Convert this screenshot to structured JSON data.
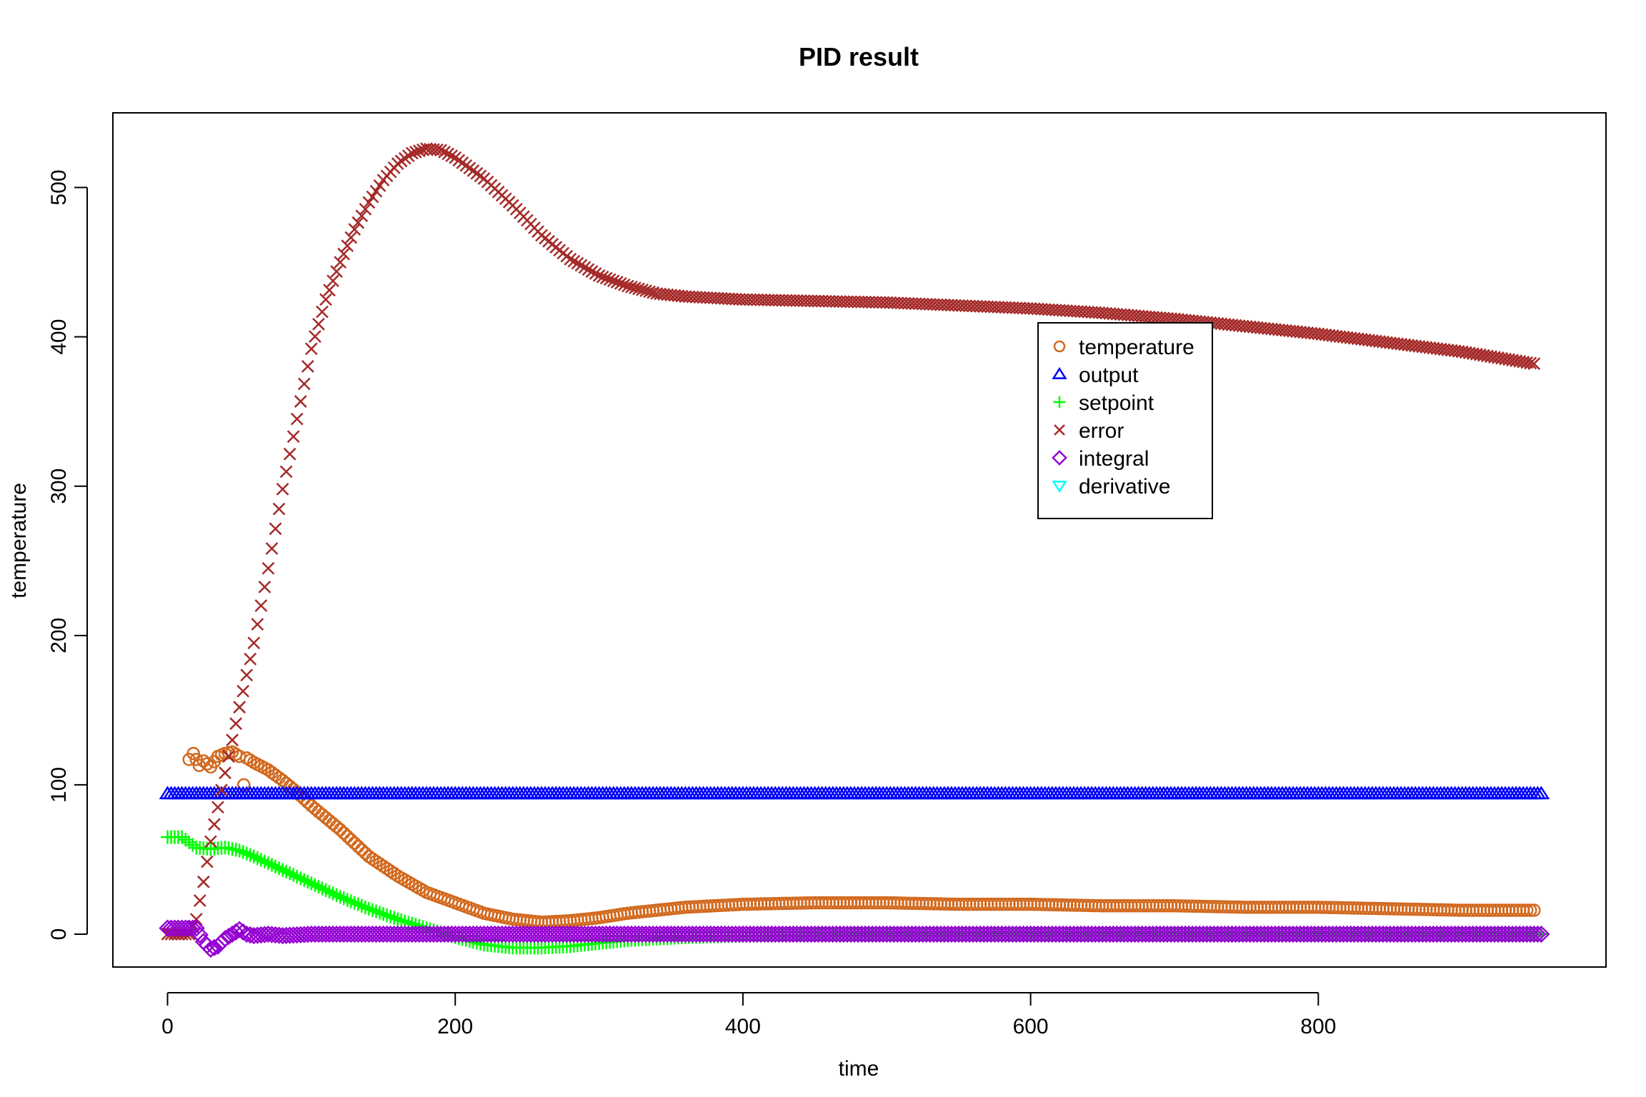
{
  "chart_data": {
    "type": "scatter",
    "title": "PID result",
    "xlabel": "time",
    "ylabel": "temperature",
    "xlim": [
      -38,
      1000
    ],
    "ylim": [
      -22,
      550
    ],
    "x_ticks": [
      0,
      200,
      400,
      600,
      800
    ],
    "y_ticks": [
      0,
      100,
      200,
      300,
      400,
      500
    ],
    "grid": false,
    "legend_position": "upper-center-right",
    "series": [
      {
        "name": "temperature",
        "marker": "circle",
        "color": "#D2691E",
        "points": [
          [
            15,
            117
          ],
          [
            18,
            121
          ],
          [
            22,
            113
          ],
          [
            25,
            116
          ],
          [
            30,
            112
          ],
          [
            35,
            119
          ],
          [
            40,
            121
          ],
          [
            45,
            122
          ],
          [
            50,
            119
          ],
          [
            53,
            100
          ],
          [
            55,
            118
          ],
          [
            60,
            115
          ],
          [
            70,
            110
          ],
          [
            80,
            103
          ],
          [
            90,
            95
          ],
          [
            100,
            86
          ],
          [
            120,
            70
          ],
          [
            140,
            52
          ],
          [
            160,
            39
          ],
          [
            180,
            28
          ],
          [
            200,
            21
          ],
          [
            220,
            14
          ],
          [
            240,
            10
          ],
          [
            260,
            8
          ],
          [
            280,
            9
          ],
          [
            300,
            11
          ],
          [
            320,
            14
          ],
          [
            340,
            16
          ],
          [
            360,
            18
          ],
          [
            380,
            19
          ],
          [
            400,
            20
          ],
          [
            450,
            21
          ],
          [
            500,
            21
          ],
          [
            550,
            20
          ],
          [
            600,
            20
          ],
          [
            650,
            19
          ],
          [
            700,
            19
          ],
          [
            750,
            18
          ],
          [
            800,
            18
          ],
          [
            850,
            17
          ],
          [
            900,
            16
          ],
          [
            950,
            16
          ]
        ]
      },
      {
        "name": "output",
        "marker": "triangle-up",
        "color": "#0000FF",
        "points": [
          [
            0,
            94
          ],
          [
            100,
            94
          ],
          [
            200,
            94
          ],
          [
            300,
            94
          ],
          [
            400,
            94
          ],
          [
            500,
            94
          ],
          [
            600,
            94
          ],
          [
            700,
            94
          ],
          [
            800,
            94
          ],
          [
            900,
            94
          ],
          [
            955,
            94
          ]
        ]
      },
      {
        "name": "setpoint",
        "marker": "plus",
        "color": "#00FF00",
        "points": [
          [
            0,
            65
          ],
          [
            10,
            65
          ],
          [
            20,
            58
          ],
          [
            30,
            57
          ],
          [
            40,
            58
          ],
          [
            50,
            56
          ],
          [
            60,
            52
          ],
          [
            80,
            43
          ],
          [
            100,
            34
          ],
          [
            120,
            25
          ],
          [
            140,
            17
          ],
          [
            160,
            10
          ],
          [
            180,
            4
          ],
          [
            200,
            -2
          ],
          [
            220,
            -7
          ],
          [
            240,
            -9
          ],
          [
            260,
            -9
          ],
          [
            280,
            -8
          ],
          [
            300,
            -6
          ],
          [
            320,
            -4
          ],
          [
            340,
            -3
          ],
          [
            360,
            -2
          ],
          [
            400,
            -1
          ],
          [
            500,
            0
          ],
          [
            600,
            0
          ],
          [
            700,
            0
          ],
          [
            800,
            0
          ],
          [
            900,
            0
          ],
          [
            955,
            0
          ]
        ]
      },
      {
        "name": "error",
        "marker": "x",
        "color": "#A52A2A",
        "points": [
          [
            0,
            0
          ],
          [
            15,
            0
          ],
          [
            20,
            10
          ],
          [
            25,
            35
          ],
          [
            30,
            62
          ],
          [
            35,
            85
          ],
          [
            40,
            108
          ],
          [
            50,
            152
          ],
          [
            60,
            195
          ],
          [
            70,
            245
          ],
          [
            80,
            298
          ],
          [
            90,
            345
          ],
          [
            100,
            392
          ],
          [
            110,
            425
          ],
          [
            120,
            450
          ],
          [
            130,
            472
          ],
          [
            140,
            490
          ],
          [
            150,
            505
          ],
          [
            160,
            516
          ],
          [
            170,
            523
          ],
          [
            180,
            526
          ],
          [
            190,
            525
          ],
          [
            200,
            520
          ],
          [
            220,
            506
          ],
          [
            240,
            488
          ],
          [
            260,
            468
          ],
          [
            280,
            452
          ],
          [
            300,
            441
          ],
          [
            320,
            434
          ],
          [
            340,
            429
          ],
          [
            360,
            427
          ],
          [
            400,
            425
          ],
          [
            450,
            424
          ],
          [
            500,
            423
          ],
          [
            550,
            421
          ],
          [
            600,
            419
          ],
          [
            650,
            416
          ],
          [
            700,
            412
          ],
          [
            750,
            407
          ],
          [
            800,
            402
          ],
          [
            850,
            396
          ],
          [
            900,
            390
          ],
          [
            950,
            382
          ]
        ]
      },
      {
        "name": "integral",
        "marker": "diamond",
        "color": "#9400D3",
        "points": [
          [
            0,
            4
          ],
          [
            10,
            4
          ],
          [
            20,
            4
          ],
          [
            25,
            -5
          ],
          [
            30,
            -10
          ],
          [
            35,
            -8
          ],
          [
            40,
            -3
          ],
          [
            45,
            0
          ],
          [
            50,
            3
          ],
          [
            55,
            0
          ],
          [
            60,
            -1
          ],
          [
            70,
            0
          ],
          [
            80,
            -1
          ],
          [
            100,
            0
          ],
          [
            150,
            0
          ],
          [
            200,
            0
          ],
          [
            250,
            0
          ],
          [
            300,
            0
          ],
          [
            350,
            0
          ],
          [
            400,
            0
          ],
          [
            450,
            0
          ],
          [
            500,
            0
          ],
          [
            550,
            0
          ],
          [
            600,
            0
          ],
          [
            650,
            0
          ],
          [
            700,
            0
          ],
          [
            750,
            0
          ],
          [
            800,
            0
          ],
          [
            850,
            0
          ],
          [
            900,
            0
          ],
          [
            955,
            0
          ]
        ]
      },
      {
        "name": "derivative",
        "marker": "triangle-down",
        "color": "#00FFFF",
        "points": []
      }
    ]
  },
  "colors": {
    "temperature": "#D2691E",
    "output": "#0000FF",
    "setpoint": "#00FF00",
    "error": "#A52A2A",
    "integral": "#9400D3",
    "derivative": "#00FFFF"
  }
}
